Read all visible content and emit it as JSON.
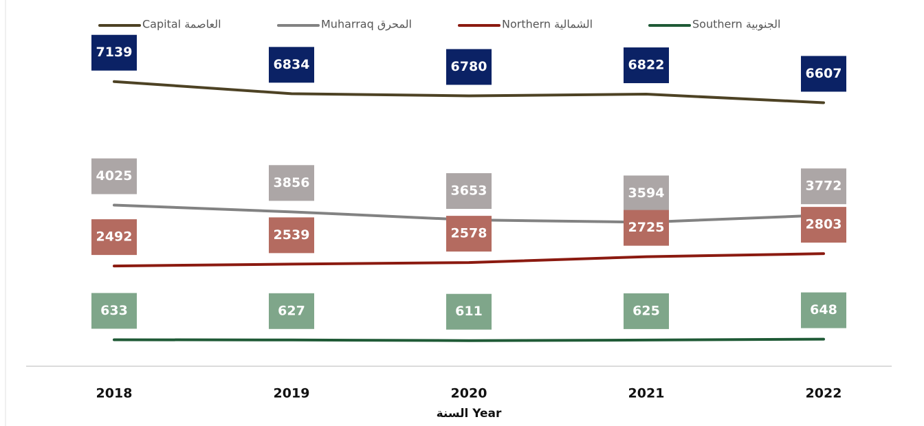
{
  "chart_data": {
    "type": "line",
    "x_label": "السنة Year",
    "categories": [
      "2018",
      "2019",
      "2020",
      "2021",
      "2022"
    ],
    "ylim": [
      0,
      8000
    ],
    "series": [
      {
        "name": "Capital العاصمة",
        "color": "#4d4224",
        "label_color": "#0b2265",
        "values": [
          7139,
          6834,
          6780,
          6822,
          6607
        ]
      },
      {
        "name": "Muharraq المحرق",
        "color": "#828282",
        "label_color": "#aca6a6",
        "values": [
          4025,
          3856,
          3653,
          3594,
          3772
        ]
      },
      {
        "name": "Northern الشمالية",
        "color": "#8b1a10",
        "label_color": "#b46b60",
        "values": [
          2492,
          2539,
          2578,
          2725,
          2803
        ]
      },
      {
        "name": "Southern الجنوبية",
        "color": "#1f5a36",
        "label_color": "#7fa68a",
        "values": [
          633,
          627,
          611,
          625,
          648
        ]
      }
    ]
  }
}
